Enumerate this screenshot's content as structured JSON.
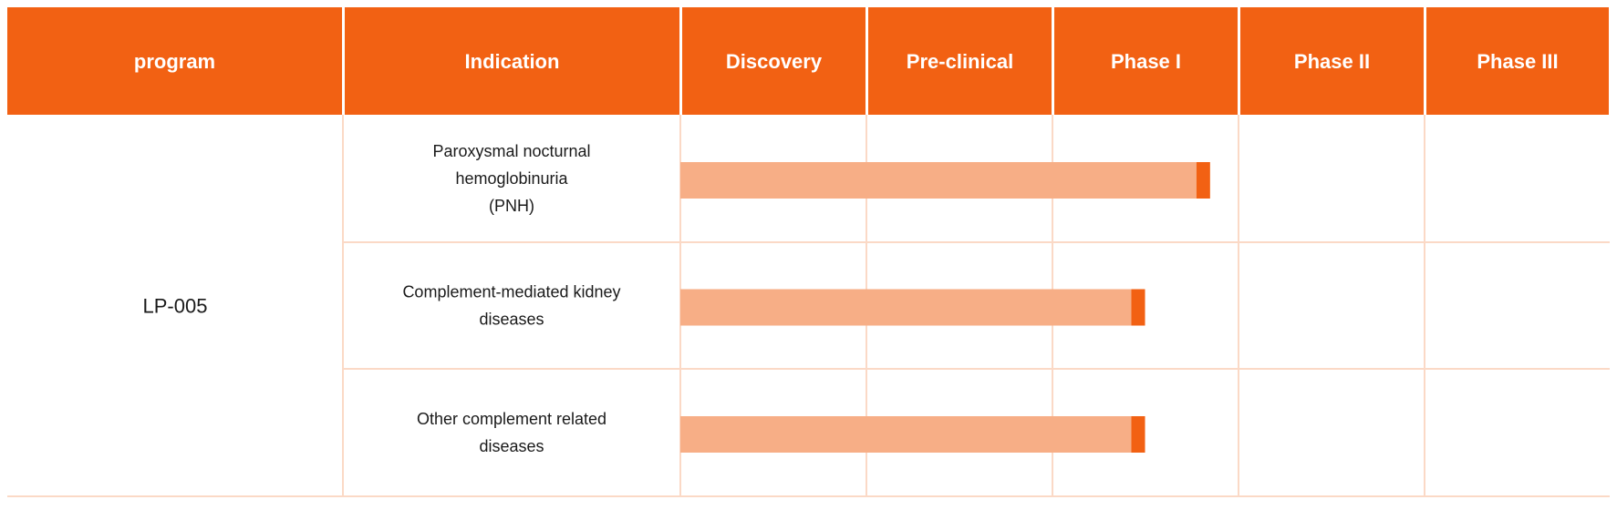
{
  "table": {
    "headers": [
      "program",
      "Indication",
      "Discovery",
      "Pre-clinical",
      "Phase I",
      "Phase II",
      "Phase III"
    ],
    "program": "LP-005",
    "rows": [
      {
        "indication_lines": [
          "Paroxysmal nocturnal",
          "hemoglobinuria",
          "(PNH)"
        ]
      },
      {
        "indication_lines": [
          "Complement-mediated kidney",
          "diseases"
        ]
      },
      {
        "indication_lines": [
          "Other complement related",
          "diseases"
        ]
      }
    ]
  },
  "colors": {
    "header_bg": "#f26113",
    "bar_fill": "#f7ae86",
    "bar_end": "#f26113",
    "grid": "#fbd9c6"
  },
  "chart_data": {
    "type": "bar",
    "orientation": "horizontal",
    "stage_axis": [
      "Discovery",
      "Pre-clinical",
      "Phase I",
      "Phase II",
      "Phase III"
    ],
    "categories": [
      "Paroxysmal nocturnal hemoglobinuria (PNH)",
      "Complement-mediated kidney diseases",
      "Other complement related diseases"
    ],
    "values": [
      2.85,
      2.5,
      2.5
    ],
    "value_note": "progress measured in stage columns from start of Discovery",
    "xlim": [
      0,
      5
    ]
  }
}
